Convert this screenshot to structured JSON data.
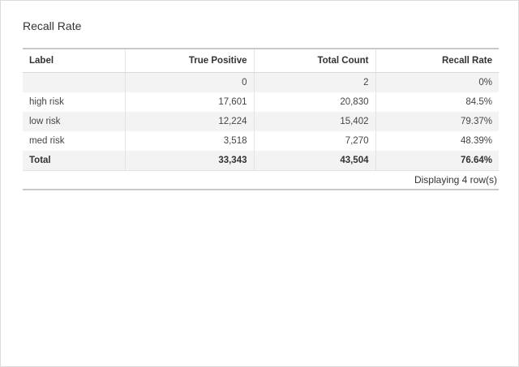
{
  "card": {
    "title": "Recall Rate"
  },
  "table": {
    "headers": {
      "label": "Label",
      "true_positive": "True Positive",
      "total_count": "Total Count",
      "recall_rate": "Recall Rate"
    },
    "rows": [
      {
        "label": "",
        "true_positive": "0",
        "total_count": "2",
        "recall_rate": "0%"
      },
      {
        "label": "high risk",
        "true_positive": "17,601",
        "total_count": "20,830",
        "recall_rate": "84.5%"
      },
      {
        "label": "low risk",
        "true_positive": "12,224",
        "total_count": "15,402",
        "recall_rate": "79.37%"
      },
      {
        "label": "med risk",
        "true_positive": "3,518",
        "total_count": "7,270",
        "recall_rate": "48.39%"
      }
    ],
    "total": {
      "label": "Total",
      "true_positive": "33,343",
      "total_count": "43,504",
      "recall_rate": "76.64%"
    },
    "footer": "Displaying 4 row(s)"
  }
}
